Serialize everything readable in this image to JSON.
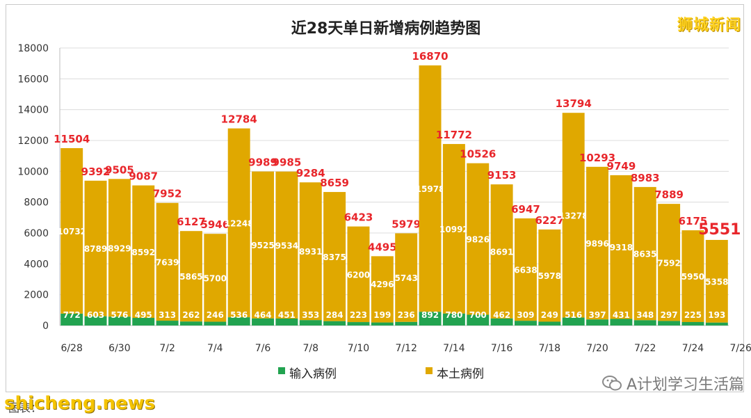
{
  "brand": "狮城新闻",
  "watermark": "shicheng.news",
  "source": "图表：",
  "wechat": "A计划学习生活篇",
  "chart_data": {
    "type": "bar",
    "stacked": true,
    "title": "近28天单日新增病例趋势图",
    "ylim": [
      0,
      18000
    ],
    "y_ticks": [
      0,
      2000,
      4000,
      6000,
      8000,
      10000,
      12000,
      14000,
      16000,
      18000
    ],
    "x_tick_labels": [
      "6/28",
      "6/30",
      "7/2",
      "7/4",
      "7/6",
      "7/8",
      "7/10",
      "7/12",
      "7/14",
      "7/16",
      "7/18",
      "7/20",
      "7/22",
      "7/24",
      "7/26"
    ],
    "grid": true,
    "legend_position": "bottom",
    "categories": [
      "6/28",
      "6/29",
      "6/30",
      "7/1",
      "7/2",
      "7/3",
      "7/4",
      "7/5",
      "7/6",
      "7/7",
      "7/8",
      "7/9",
      "7/10",
      "7/11",
      "7/12",
      "7/13",
      "7/14",
      "7/15",
      "7/16",
      "7/17",
      "7/18",
      "7/19",
      "7/20",
      "7/21",
      "7/22",
      "7/23",
      "7/24",
      "7/25"
    ],
    "series": [
      {
        "name": "输入病例",
        "color": "#22a350",
        "values": [
          772,
          603,
          576,
          495,
          313,
          262,
          246,
          536,
          464,
          451,
          353,
          284,
          223,
          199,
          236,
          892,
          780,
          700,
          462,
          309,
          249,
          516,
          397,
          431,
          348,
          297,
          225,
          193
        ]
      },
      {
        "name": "本土病例",
        "color": "#e0a800",
        "values": [
          10732,
          8789,
          8929,
          8592,
          7639,
          5865,
          5700,
          12248,
          9525,
          9534,
          8931,
          8375,
          6200,
          4296,
          5743,
          15978,
          10992,
          9826,
          8691,
          6638,
          5978,
          13278,
          9896,
          9318,
          8635,
          7592,
          5950,
          5358
        ]
      }
    ],
    "totals": [
      11504,
      9392,
      9505,
      9087,
      7952,
      6127,
      5946,
      12784,
      9989,
      9985,
      9284,
      8659,
      6423,
      4495,
      5979,
      16870,
      11772,
      10526,
      9153,
      6947,
      6227,
      13794,
      10293,
      9749,
      8983,
      7889,
      6175,
      5551
    ],
    "total_label_color": "#e8262b"
  }
}
